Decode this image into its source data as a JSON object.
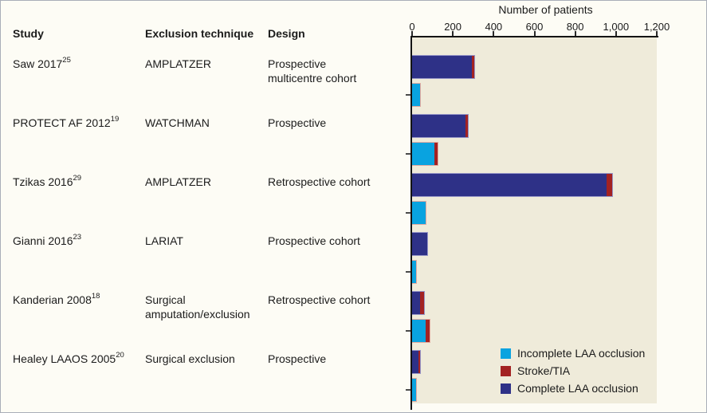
{
  "figure": {
    "table": {
      "headers": [
        "Study",
        "Exclusion technique",
        "Design"
      ]
    }
  },
  "chart_data": {
    "type": "bar",
    "orientation": "horizontal",
    "title": "Number of patients",
    "xlabel": "Number of patients",
    "xlim": [
      0,
      1200
    ],
    "x_ticks": [
      0,
      200,
      400,
      600,
      800,
      1000,
      1200
    ],
    "x_tick_labels": [
      "0",
      "200",
      "400",
      "600",
      "800",
      "1,000",
      "1,200"
    ],
    "grid": false,
    "legend_position": "inside-bottom-right",
    "legend": [
      {
        "label": "Incomplete LAA occlusion",
        "color": "#09a3e0"
      },
      {
        "label": "Stroke/TIA",
        "color": "#a32222"
      },
      {
        "label": "Complete LAA occlusion",
        "color": "#2e3187"
      }
    ],
    "rows": [
      {
        "study": "Saw 2017",
        "ref": "25",
        "technique": "AMPLATZER",
        "design": "Prospective\nmulticentre cohort",
        "complete_occlusion": 295,
        "stroke_tia_on_complete": 10,
        "incomplete_occlusion": 40,
        "stroke_tia_on_incomplete": 0
      },
      {
        "study": "PROTECT AF 2012",
        "ref": "19",
        "technique": "WATCHMAN",
        "design": "Prospective",
        "complete_occlusion": 260,
        "stroke_tia_on_complete": 15,
        "incomplete_occlusion": 110,
        "stroke_tia_on_incomplete": 15
      },
      {
        "study": "Tzikas 2016",
        "ref": "29",
        "technique": "AMPLATZER",
        "design": "Retrospective cohort",
        "complete_occlusion": 955,
        "stroke_tia_on_complete": 25,
        "incomplete_occlusion": 65,
        "stroke_tia_on_incomplete": 0
      },
      {
        "study": "Gianni 2016",
        "ref": "23",
        "technique": "LARIAT",
        "design": "Prospective cohort",
        "complete_occlusion": 75,
        "stroke_tia_on_complete": 0,
        "incomplete_occlusion": 20,
        "stroke_tia_on_incomplete": 0
      },
      {
        "study": "Kanderian 2008",
        "ref": "18",
        "technique": "Surgical\namputation/exclusion",
        "design": "Retrospective cohort",
        "complete_occlusion": 40,
        "stroke_tia_on_complete": 20,
        "incomplete_occlusion": 65,
        "stroke_tia_on_incomplete": 20
      },
      {
        "study": "Healey LAAOS 2005",
        "ref": "20",
        "technique": "Surgical exclusion",
        "design": "Prospective",
        "complete_occlusion": 30,
        "stroke_tia_on_complete": 10,
        "incomplete_occlusion": 18,
        "stroke_tia_on_incomplete": 0
      }
    ],
    "colors": {
      "complete": "#2e3187",
      "incomplete": "#09a3e0",
      "stroke": "#a32222",
      "plot_background": "#efebda",
      "figure_background": "#fdfcf5",
      "axis": "#141414"
    }
  }
}
